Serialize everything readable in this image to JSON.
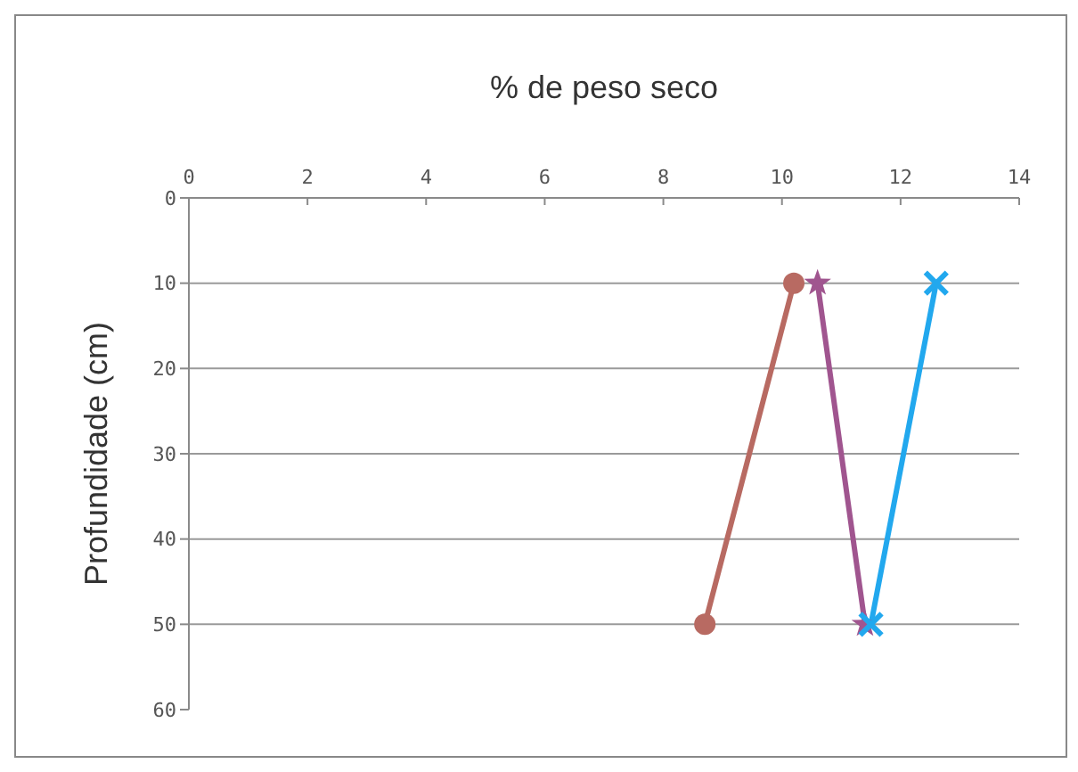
{
  "chart_data": {
    "type": "line",
    "xlabel": "% de peso seco",
    "ylabel": "Profundidade (cm)",
    "xlim": [
      0,
      14
    ],
    "xticks": [
      0,
      2,
      4,
      6,
      8,
      10,
      12,
      14
    ],
    "ylim": [
      60,
      0
    ],
    "yticks": [
      0,
      10,
      20,
      30,
      40,
      50,
      60
    ],
    "grid": "y",
    "line_style": "solid",
    "series": [
      {
        "color": "#b86a62",
        "marker": "circle",
        "x": [
          10.2,
          8.7
        ],
        "values": [
          10,
          50
        ]
      },
      {
        "color": "#a0558f",
        "marker": "star",
        "x": [
          10.6,
          11.4
        ],
        "values": [
          10,
          50
        ]
      },
      {
        "color": "#22a8ee",
        "marker": "cross",
        "x": [
          12.6,
          11.5
        ],
        "values": [
          10,
          50
        ]
      }
    ]
  }
}
